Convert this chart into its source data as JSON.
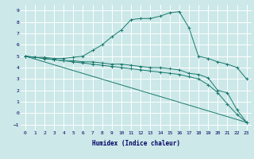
{
  "xlabel": "Humidex (Indice chaleur)",
  "background_color": "#cce8e8",
  "line_color": "#1a7a6e",
  "grid_color": "#ffffff",
  "xlim": [
    -0.5,
    23.5
  ],
  "ylim": [
    -1.5,
    9.5
  ],
  "xticks": [
    0,
    1,
    2,
    3,
    4,
    5,
    6,
    7,
    8,
    9,
    10,
    11,
    12,
    13,
    14,
    15,
    16,
    17,
    18,
    19,
    20,
    21,
    22,
    23
  ],
  "yticks": [
    -1,
    0,
    1,
    2,
    3,
    4,
    5,
    6,
    7,
    8,
    9
  ],
  "line1_x": [
    0,
    1,
    2,
    3,
    4,
    5,
    6,
    7,
    8,
    9,
    10,
    11,
    12,
    13,
    14,
    15,
    16,
    17,
    18,
    19,
    20,
    21,
    22,
    23
  ],
  "line1_y": [
    5.0,
    4.9,
    4.9,
    4.8,
    4.8,
    4.9,
    5.0,
    5.5,
    6.0,
    6.7,
    7.3,
    8.2,
    8.3,
    8.3,
    8.5,
    8.8,
    8.9,
    7.5,
    5.0,
    4.8,
    4.5,
    4.3,
    4.0,
    3.0
  ],
  "line2_x": [
    0,
    1,
    2,
    3,
    4,
    5,
    6,
    7,
    8,
    9,
    10,
    11,
    12,
    13,
    14,
    15,
    16,
    17,
    18,
    19,
    20,
    21,
    22,
    23
  ],
  "line2_y": [
    5.0,
    4.9,
    4.8,
    4.7,
    4.6,
    4.6,
    4.5,
    4.5,
    4.4,
    4.3,
    4.3,
    4.2,
    4.1,
    4.0,
    4.0,
    3.9,
    3.8,
    3.5,
    3.4,
    3.1,
    2.0,
    1.8,
    0.3,
    -0.8
  ],
  "line3_x": [
    0,
    1,
    2,
    3,
    4,
    5,
    6,
    7,
    8,
    9,
    10,
    11,
    12,
    13,
    14,
    15,
    16,
    17,
    18,
    19,
    20,
    21,
    22,
    23
  ],
  "line3_y": [
    5.0,
    4.9,
    4.8,
    4.7,
    4.6,
    4.5,
    4.4,
    4.3,
    4.2,
    4.1,
    4.0,
    3.9,
    3.8,
    3.7,
    3.6,
    3.5,
    3.4,
    3.2,
    3.0,
    2.5,
    1.8,
    0.8,
    -0.1,
    -0.8
  ],
  "line4_x": [
    0,
    23
  ],
  "line4_y": [
    5.0,
    -0.8
  ]
}
